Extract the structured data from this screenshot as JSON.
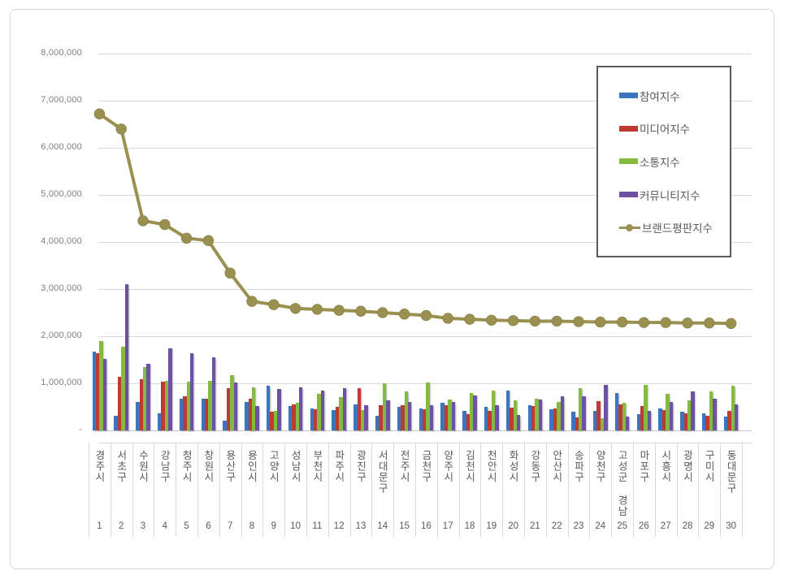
{
  "window": {
    "background": "#ffffff",
    "frame_border_color": "#d9d9d9",
    "legend_border_color": "#595959"
  },
  "colors": {
    "participation_blue": "#3a76c0",
    "media_red": "#be3b34",
    "communication_green": "#84ba40",
    "community_purple": "#6c51a4",
    "brand_olive": "#9a9150",
    "gridline": "#d9d9d9",
    "text_gray": "#595959",
    "axis_label_gray": "#7f7f7f"
  },
  "chart_data": {
    "type": "combo_bar_line",
    "title": "",
    "legend_position": "right-top-inside",
    "grid": true,
    "y_axis": {
      "min": 0,
      "max": 8000000,
      "step": 1000000,
      "zero_label": "-"
    },
    "categories": [
      "경주시",
      "서초구",
      "수원시",
      "강남구",
      "청주시",
      "창원시",
      "용산구",
      "용인시",
      "고양시",
      "성남시",
      "부천시",
      "파주시",
      "광진구",
      "서대문구",
      "전주시",
      "금천구",
      "양주시",
      "김천시",
      "천안시",
      "화성시",
      "강동구",
      "안산시",
      "송파구",
      "양천구",
      "고성군 경남",
      "마포구",
      "시흥시",
      "광명시",
      "구미시",
      "동대문구"
    ],
    "ranks": [
      1,
      2,
      3,
      4,
      5,
      6,
      7,
      8,
      9,
      10,
      11,
      12,
      13,
      14,
      15,
      16,
      17,
      18,
      19,
      20,
      21,
      22,
      23,
      24,
      25,
      26,
      27,
      28,
      29,
      30
    ],
    "series": [
      {
        "name": "참여지수",
        "type": "bar",
        "color": "#3a76c0",
        "values": [
          1670000,
          310000,
          600000,
          370000,
          680000,
          670000,
          210000,
          600000,
          940000,
          520000,
          470000,
          430000,
          560000,
          310000,
          500000,
          460000,
          580000,
          410000,
          500000,
          840000,
          540000,
          440000,
          390000,
          420000,
          800000,
          340000,
          460000,
          400000,
          370000,
          300000
        ]
      },
      {
        "name": "미디어지수",
        "type": "bar",
        "color": "#be3b34",
        "values": [
          1630000,
          1130000,
          1090000,
          1040000,
          720000,
          680000,
          900000,
          670000,
          400000,
          550000,
          440000,
          500000,
          890000,
          530000,
          540000,
          450000,
          540000,
          350000,
          410000,
          480000,
          510000,
          460000,
          270000,
          620000,
          560000,
          510000,
          430000,
          360000,
          310000,
          410000
        ]
      },
      {
        "name": "소통지수",
        "type": "bar",
        "color": "#84ba40",
        "values": [
          1890000,
          1780000,
          1340000,
          1050000,
          1030000,
          1060000,
          1170000,
          910000,
          420000,
          580000,
          780000,
          710000,
          430000,
          1000000,
          830000,
          1010000,
          660000,
          800000,
          850000,
          630000,
          680000,
          600000,
          890000,
          260000,
          590000,
          960000,
          770000,
          640000,
          820000,
          940000
        ]
      },
      {
        "name": "커뮤니티지수",
        "type": "bar",
        "color": "#6c51a4",
        "values": [
          1510000,
          3110000,
          1410000,
          1750000,
          1640000,
          1560000,
          1010000,
          520000,
          880000,
          920000,
          850000,
          890000,
          540000,
          640000,
          610000,
          540000,
          610000,
          750000,
          540000,
          320000,
          650000,
          720000,
          730000,
          960000,
          290000,
          420000,
          600000,
          820000,
          680000,
          550000
        ]
      },
      {
        "name": "브랜드평판지수",
        "type": "line",
        "color": "#9a9150",
        "values": [
          6720000,
          6400000,
          4450000,
          4370000,
          4080000,
          4030000,
          3340000,
          2740000,
          2670000,
          2590000,
          2570000,
          2550000,
          2530000,
          2500000,
          2470000,
          2440000,
          2380000,
          2360000,
          2340000,
          2330000,
          2320000,
          2320000,
          2310000,
          2300000,
          2300000,
          2290000,
          2290000,
          2280000,
          2280000,
          2270000
        ]
      }
    ]
  }
}
